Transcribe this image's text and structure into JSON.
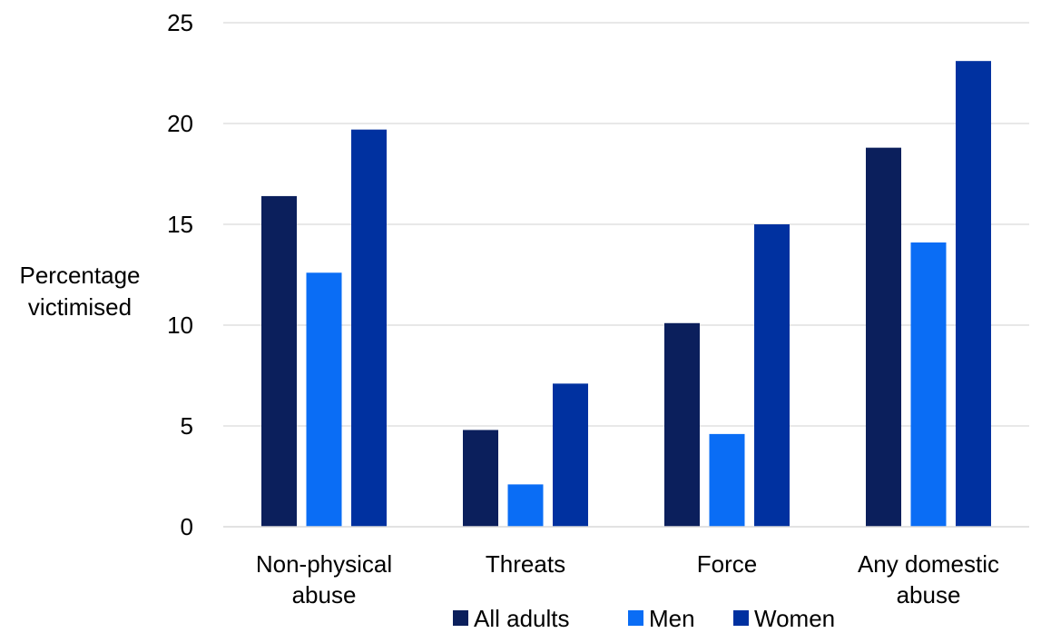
{
  "chart_data": {
    "type": "bar",
    "title": "",
    "xlabel": "",
    "ylabel": [
      "Percentage",
      "victimised"
    ],
    "ylim": [
      0,
      25
    ],
    "yticks": [
      0,
      5,
      10,
      15,
      20,
      25
    ],
    "grid": true,
    "legend_position": "bottom",
    "categories": [
      [
        "Non-physical",
        "abuse"
      ],
      [
        "Threats"
      ],
      [
        "Force"
      ],
      [
        "Any domestic",
        "abuse"
      ]
    ],
    "series": [
      {
        "name": "All adults",
        "color": "#0b1f5c",
        "values": [
          16.4,
          4.8,
          10.1,
          18.8
        ]
      },
      {
        "name": "Men",
        "color": "#0a6df5",
        "values": [
          12.6,
          2.1,
          4.6,
          14.1
        ]
      },
      {
        "name": "Women",
        "color": "#0031a0",
        "values": [
          19.7,
          7.1,
          15.0,
          23.1
        ]
      }
    ]
  }
}
